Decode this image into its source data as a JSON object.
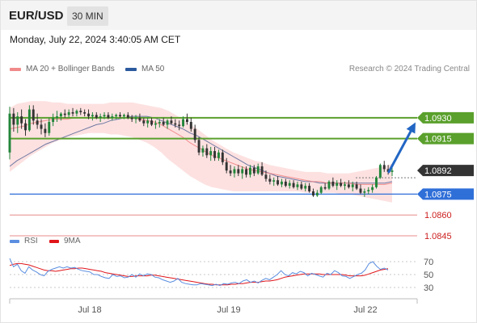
{
  "header": {
    "symbol": "EUR/USD",
    "timeframe": "30 MIN"
  },
  "datetime": "Monday, July 22, 2024 3:40:05 AM CET",
  "legend": {
    "items": [
      {
        "label": "MA 20 + Bollinger Bands",
        "color": "#f08a8a"
      },
      {
        "label": "MA 50",
        "color": "#2c5a9e"
      }
    ],
    "credit": "Research © 2024 Trading Central"
  },
  "rsi_legend": {
    "items": [
      {
        "label": "RSI",
        "color": "#5b8ee0"
      },
      {
        "label": "9MA",
        "color": "#e0151a"
      }
    ]
  },
  "colors": {
    "resistance": "#5aa02c",
    "support": "#2f6fd8",
    "target_line": "#e88c8c",
    "target_text": "#cc1d1d",
    "current_badge": "#333333",
    "arrow": "#2266c4",
    "candle_up": "#22863a",
    "candle_down": "#333333",
    "band_fill": "#fde1e1",
    "ma20": "#f07a7a",
    "ma50": "#4a5f95",
    "rsi": "#5b8ee0",
    "rsi_ma": "#e0151a"
  },
  "chart_data": [
    {
      "type": "candlestick",
      "x_tick_labels": [
        "Jul 18",
        "Jul 19",
        "Jul 22"
      ],
      "ylim": [
        1.0845,
        1.0952
      ],
      "current_price": 1.0892,
      "levels": [
        {
          "value": 1.093,
          "label": "1.0930",
          "kind": "resistance"
        },
        {
          "value": 1.0915,
          "label": "1.0915",
          "kind": "resistance"
        },
        {
          "value": 1.0875,
          "label": "1.0875",
          "kind": "support"
        },
        {
          "value": 1.086,
          "label": "1.0860",
          "kind": "target"
        },
        {
          "value": 1.0845,
          "label": "1.0845",
          "kind": "target"
        }
      ],
      "current_label": "1.0892",
      "forecast": {
        "from": 1.0891,
        "to": 1.0929,
        "direction": "up"
      },
      "ma20": [
        1.0922,
        1.0923,
        1.0924,
        1.0926,
        1.0927,
        1.0928,
        1.0929,
        1.0929,
        1.0929,
        1.093,
        1.093,
        1.093,
        1.093,
        1.093,
        1.093,
        1.093,
        1.093,
        1.093,
        1.0929,
        1.0928,
        1.0927,
        1.0925,
        1.0922,
        1.0919,
        1.0916,
        1.0912,
        1.0909,
        1.0906,
        1.0903,
        1.0901,
        1.0899,
        1.0897,
        1.0895,
        1.0893,
        1.0892,
        1.0891,
        1.089,
        1.0889,
        1.0888,
        1.0887,
        1.0886,
        1.0885,
        1.0884,
        1.0884,
        1.0883,
        1.0883,
        1.0883,
        1.0883,
        1.0882,
        1.0882,
        1.0882,
        1.0882,
        1.0882,
        1.0883
      ],
      "ma50": [
        1.0895,
        1.0899,
        1.0902,
        1.0905,
        1.0908,
        1.0911,
        1.0913,
        1.0915,
        1.0917,
        1.0919,
        1.0921,
        1.0923,
        1.0925,
        1.0926,
        1.0928,
        1.0929,
        1.093,
        1.0931,
        1.0931,
        1.0931,
        1.093,
        1.0928,
        1.0926,
        1.0924,
        1.0922,
        1.0919,
        1.0917,
        1.0914,
        1.0911,
        1.0908,
        1.0905,
        1.0902,
        1.0899,
        1.0896,
        1.0894,
        1.0892,
        1.089,
        1.0888,
        1.0887,
        1.0886,
        1.0885,
        1.0884,
        1.0884,
        1.0883,
        1.0883,
        1.0883,
        1.0883,
        1.0883,
        1.0883,
        1.0883,
        1.0883,
        1.0883,
        1.0883,
        1.0884
      ],
      "band_upper": [
        1.0937,
        1.094,
        1.0941,
        1.0942,
        1.0942,
        1.0942,
        1.0941,
        1.0941,
        1.094,
        1.094,
        1.094,
        1.094,
        1.094,
        1.094,
        1.0941,
        1.0941,
        1.0941,
        1.0941,
        1.094,
        1.0939,
        1.0938,
        1.0937,
        1.0935,
        1.0932,
        1.0929,
        1.0925,
        1.0922,
        1.0918,
        1.0914,
        1.0911,
        1.0908,
        1.0905,
        1.0903,
        1.0901,
        1.0899,
        1.0898,
        1.0896,
        1.0895,
        1.0894,
        1.0893,
        1.0892,
        1.0891,
        1.0891,
        1.0891,
        1.089,
        1.089,
        1.089,
        1.089,
        1.0891,
        1.0892,
        1.0893,
        1.0894,
        1.0895,
        1.0897
      ],
      "band_lower": [
        1.0891,
        1.0895,
        1.0899,
        1.0903,
        1.0906,
        1.0909,
        1.0912,
        1.0914,
        1.0916,
        1.0917,
        1.0918,
        1.0919,
        1.0919,
        1.0919,
        1.0918,
        1.0918,
        1.0917,
        1.0916,
        1.0914,
        1.0912,
        1.0909,
        1.0905,
        1.09,
        1.0896,
        1.0892,
        1.0888,
        1.0885,
        1.0882,
        1.088,
        1.0879,
        1.0878,
        1.0877,
        1.0877,
        1.0877,
        1.0877,
        1.0877,
        1.0877,
        1.0877,
        1.0877,
        1.0877,
        1.0877,
        1.0876,
        1.0876,
        1.0876,
        1.0876,
        1.0876,
        1.0875,
        1.0875,
        1.0874,
        1.0873,
        1.0872,
        1.0871,
        1.087,
        1.0869
      ],
      "candles": [
        [
          1.0905,
          1.0938,
          1.09,
          1.0933
        ],
        [
          1.0933,
          1.0937,
          1.092,
          1.0925
        ],
        [
          1.0925,
          1.0934,
          1.0919,
          1.0931
        ],
        [
          1.0931,
          1.0936,
          1.0922,
          1.0926
        ],
        [
          1.0926,
          1.0929,
          1.0917,
          1.0921
        ],
        [
          1.0921,
          1.0939,
          1.092,
          1.0936
        ],
        [
          1.0936,
          1.0939,
          1.0925,
          1.0928
        ],
        [
          1.0928,
          1.0933,
          1.0922,
          1.0925
        ],
        [
          1.0925,
          1.0929,
          1.0918,
          1.0922
        ],
        [
          1.0922,
          1.0926,
          1.0916,
          1.0919
        ],
        [
          1.0919,
          1.093,
          1.0917,
          1.0927
        ],
        [
          1.0927,
          1.0933,
          1.0924,
          1.093
        ],
        [
          1.093,
          1.0935,
          1.0927,
          1.0931
        ],
        [
          1.0931,
          1.0934,
          1.0928,
          1.0933
        ],
        [
          1.0933,
          1.0936,
          1.093,
          1.0932
        ],
        [
          1.0932,
          1.0936,
          1.093,
          1.0934
        ],
        [
          1.0934,
          1.0937,
          1.0931,
          1.0933
        ],
        [
          1.0933,
          1.0936,
          1.0931,
          1.0935
        ],
        [
          1.0935,
          1.0937,
          1.0932,
          1.0934
        ],
        [
          1.0934,
          1.0936,
          1.0931,
          1.0933
        ],
        [
          1.0933,
          1.0936,
          1.0929,
          1.0931
        ],
        [
          1.0931,
          1.0934,
          1.0928,
          1.0932
        ],
        [
          1.0932,
          1.0934,
          1.0929,
          1.093
        ],
        [
          1.093,
          1.0933,
          1.0927,
          1.0931
        ],
        [
          1.0931,
          1.0934,
          1.0929,
          1.0932
        ],
        [
          1.0932,
          1.0934,
          1.0929,
          1.093
        ],
        [
          1.093,
          1.0933,
          1.0928,
          1.0931
        ],
        [
          1.0931,
          1.0933,
          1.0929,
          1.0932
        ],
        [
          1.0932,
          1.0934,
          1.093,
          1.0931
        ],
        [
          1.0931,
          1.0933,
          1.0929,
          1.0932
        ],
        [
          1.0932,
          1.0934,
          1.0929,
          1.093
        ],
        [
          1.093,
          1.0932,
          1.0927,
          1.0929
        ],
        [
          1.0929,
          1.0932,
          1.0926,
          1.093
        ],
        [
          1.093,
          1.0933,
          1.0927,
          1.0928
        ],
        [
          1.0928,
          1.093,
          1.0924,
          1.0926
        ],
        [
          1.0926,
          1.093,
          1.0923,
          1.0928
        ],
        [
          1.0928,
          1.093,
          1.0924,
          1.0925
        ],
        [
          1.0925,
          1.0928,
          1.0922,
          1.0926
        ],
        [
          1.0926,
          1.0929,
          1.0923,
          1.0927
        ],
        [
          1.0927,
          1.093,
          1.0924,
          1.0925
        ],
        [
          1.0925,
          1.0929,
          1.0922,
          1.0928
        ],
        [
          1.0928,
          1.0931,
          1.0925,
          1.0926
        ],
        [
          1.0926,
          1.0929,
          1.0923,
          1.0925
        ],
        [
          1.0925,
          1.0928,
          1.0921,
          1.0924
        ],
        [
          1.0924,
          1.0931,
          1.0923,
          1.0929
        ],
        [
          1.0929,
          1.0933,
          1.0925,
          1.0927
        ],
        [
          1.0927,
          1.093,
          1.092,
          1.0922
        ],
        [
          1.0922,
          1.0925,
          1.0912,
          1.0914
        ],
        [
          1.0914,
          1.0916,
          1.0903,
          1.0905
        ],
        [
          1.0905,
          1.091,
          1.0902,
          1.0908
        ],
        [
          1.0908,
          1.0911,
          1.0901,
          1.0903
        ],
        [
          1.0903,
          1.0909,
          1.0899,
          1.0906
        ],
        [
          1.0906,
          1.0909,
          1.0899,
          1.0901
        ],
        [
          1.0901,
          1.0907,
          1.0899,
          1.0905
        ],
        [
          1.0905,
          1.0907,
          1.0896,
          1.0898
        ],
        [
          1.0898,
          1.0901,
          1.089,
          1.0892
        ],
        [
          1.0892,
          1.0896,
          1.0888,
          1.089
        ],
        [
          1.089,
          1.0895,
          1.0887,
          1.0893
        ],
        [
          1.0893,
          1.0896,
          1.0888,
          1.089
        ],
        [
          1.089,
          1.0895,
          1.0886,
          1.0893
        ],
        [
          1.0893,
          1.0895,
          1.0887,
          1.0889
        ],
        [
          1.0889,
          1.0896,
          1.0887,
          1.0894
        ],
        [
          1.0894,
          1.0896,
          1.0888,
          1.089
        ],
        [
          1.089,
          1.0897,
          1.0889,
          1.0895
        ],
        [
          1.0895,
          1.0898,
          1.0888,
          1.0889
        ],
        [
          1.0889,
          1.0892,
          1.0884,
          1.0886
        ],
        [
          1.0886,
          1.0889,
          1.0882,
          1.0884
        ],
        [
          1.0884,
          1.0887,
          1.0881,
          1.0885
        ],
        [
          1.0885,
          1.0888,
          1.0881,
          1.0882
        ],
        [
          1.0882,
          1.0886,
          1.088,
          1.0884
        ],
        [
          1.0884,
          1.0886,
          1.088,
          1.0881
        ],
        [
          1.0881,
          1.0885,
          1.0879,
          1.0883
        ],
        [
          1.0883,
          1.0885,
          1.0879,
          1.088
        ],
        [
          1.088,
          1.0884,
          1.0878,
          1.0882
        ],
        [
          1.0882,
          1.0884,
          1.0878,
          1.0879
        ],
        [
          1.0879,
          1.0883,
          1.0877,
          1.0881
        ],
        [
          1.0881,
          1.0883,
          1.0876,
          1.0877
        ],
        [
          1.0877,
          1.0879,
          1.0873,
          1.0874
        ],
        [
          1.0874,
          1.0878,
          1.0873,
          1.0876
        ],
        [
          1.0876,
          1.0881,
          1.0875,
          1.088
        ],
        [
          1.088,
          1.0883,
          1.0878,
          1.0879
        ],
        [
          1.0879,
          1.0885,
          1.0878,
          1.0884
        ],
        [
          1.0884,
          1.0887,
          1.088,
          1.0881
        ],
        [
          1.0881,
          1.0885,
          1.0878,
          1.0883
        ],
        [
          1.0883,
          1.0886,
          1.088,
          1.0881
        ],
        [
          1.0881,
          1.0884,
          1.0878,
          1.0882
        ],
        [
          1.0882,
          1.0885,
          1.0879,
          1.088
        ],
        [
          1.088,
          1.0884,
          1.0877,
          1.0882
        ],
        [
          1.0882,
          1.0884,
          1.0878,
          1.0879
        ],
        [
          1.0879,
          1.0882,
          1.0875,
          1.0876
        ],
        [
          1.0876,
          1.0879,
          1.0873,
          1.0877
        ],
        [
          1.0877,
          1.088,
          1.0875,
          1.0878
        ],
        [
          1.0878,
          1.0882,
          1.0876,
          1.088
        ],
        [
          1.088,
          1.0888,
          1.0879,
          1.0887
        ],
        [
          1.0887,
          1.0897,
          1.0886,
          1.0896
        ],
        [
          1.0896,
          1.0899,
          1.0891,
          1.0893
        ],
        [
          1.0893,
          1.0896,
          1.0889,
          1.0891
        ],
        [
          1.0891,
          1.0895,
          1.0888,
          1.0892
        ]
      ]
    },
    {
      "type": "line",
      "name": "RSI",
      "ylim": [
        20,
        80
      ],
      "y_ticks": [
        70,
        50,
        30
      ],
      "rsi": [
        75,
        62,
        66,
        56,
        52,
        62,
        57,
        54,
        50,
        48,
        55,
        58,
        60,
        62,
        60,
        62,
        60,
        61,
        58,
        56,
        55,
        54,
        50,
        50,
        47,
        45,
        44,
        50,
        47,
        48,
        45,
        46,
        50,
        46,
        51,
        48,
        51,
        50,
        46,
        45,
        42,
        40,
        38,
        40,
        44,
        38,
        36,
        35,
        34,
        34,
        36,
        35,
        34,
        33,
        35,
        33,
        36,
        35,
        37,
        38,
        36,
        40,
        42,
        38,
        40,
        37,
        41,
        44,
        42,
        46,
        50,
        56,
        50,
        48,
        53,
        51,
        55,
        53,
        48,
        52,
        50,
        48,
        46,
        52,
        50,
        56,
        53,
        48,
        47,
        44,
        47,
        50,
        52,
        57,
        67,
        70,
        63,
        58,
        60,
        57
      ],
      "rsi_ma": [
        64,
        66,
        67,
        67,
        66,
        65,
        63,
        61,
        59,
        57,
        56,
        56,
        55,
        56,
        57,
        58,
        59,
        59,
        60,
        60,
        59,
        58,
        57,
        56,
        55,
        53,
        52,
        51,
        50,
        49,
        48,
        47,
        47,
        48,
        48,
        48,
        48,
        49,
        49,
        48,
        47,
        46,
        45,
        44,
        43,
        42,
        41,
        40,
        39,
        38,
        37,
        36,
        35,
        35,
        34,
        34,
        34,
        34,
        35,
        35,
        36,
        36,
        37,
        38,
        38,
        38,
        39,
        40,
        40,
        41,
        42,
        44,
        46,
        47,
        48,
        49,
        50,
        51,
        51,
        51,
        51,
        51,
        50,
        50,
        50,
        50,
        50,
        50,
        49,
        48,
        48,
        48,
        48,
        49,
        51,
        53,
        55,
        57,
        58,
        59
      ]
    }
  ]
}
